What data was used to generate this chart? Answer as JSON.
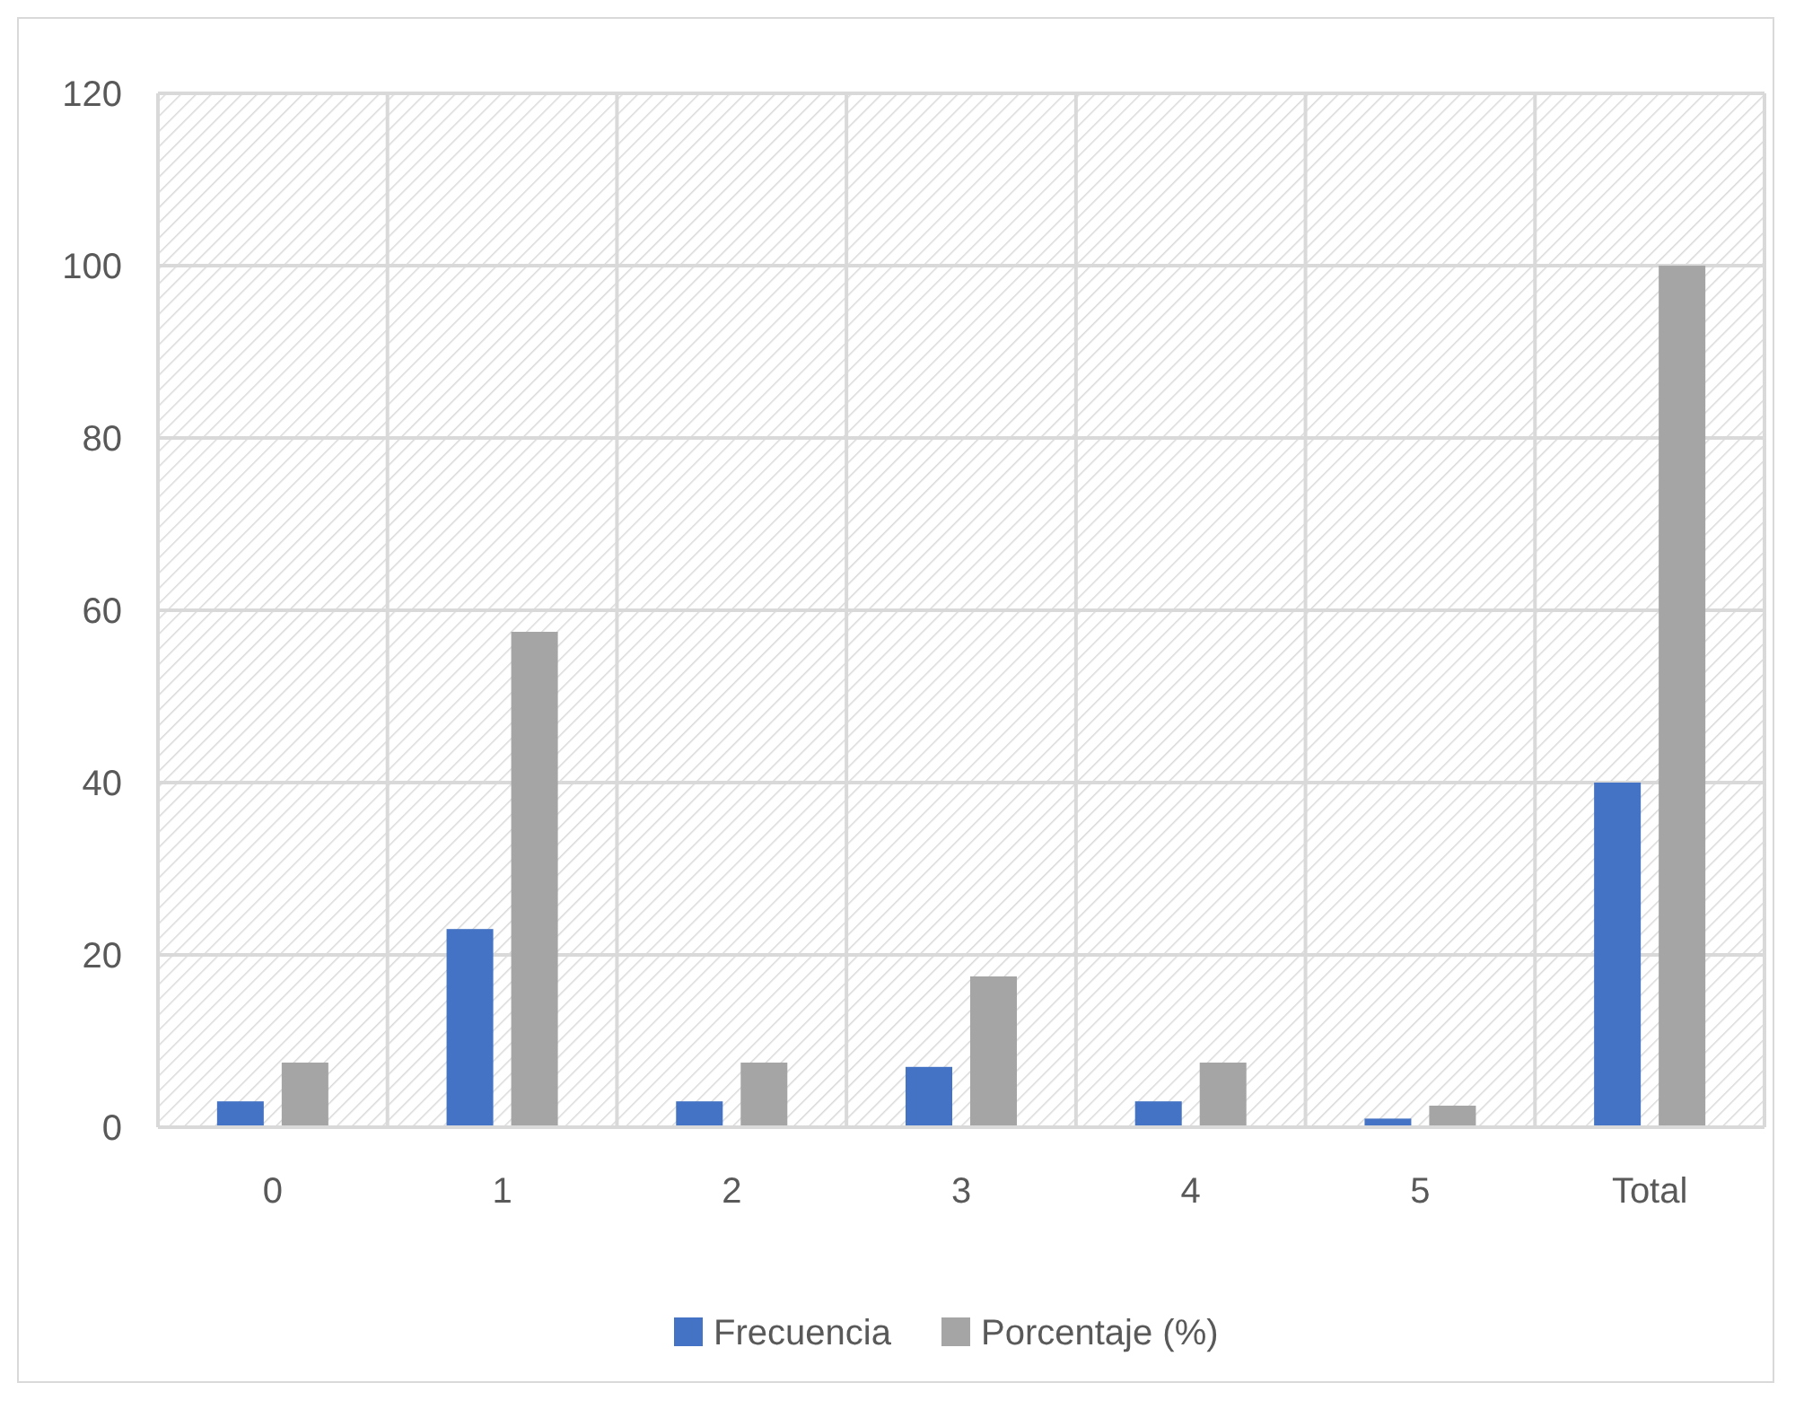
{
  "chart_data": {
    "type": "bar",
    "categories": [
      "0",
      "1",
      "2",
      "3",
      "4",
      "5",
      "Total"
    ],
    "series": [
      {
        "name": "Frecuencia",
        "color": "#4472c4",
        "values": [
          3,
          23,
          3,
          7,
          3,
          1,
          40
        ]
      },
      {
        "name": "Porcentaje (%)",
        "color": "#a5a5a5",
        "values": [
          7.5,
          57.5,
          7.5,
          17.5,
          7.5,
          2.5,
          100
        ]
      }
    ],
    "ylim": [
      0,
      120
    ],
    "yticks": [
      0,
      20,
      40,
      60,
      80,
      100,
      120
    ],
    "grid": true,
    "legend": "bottom"
  }
}
